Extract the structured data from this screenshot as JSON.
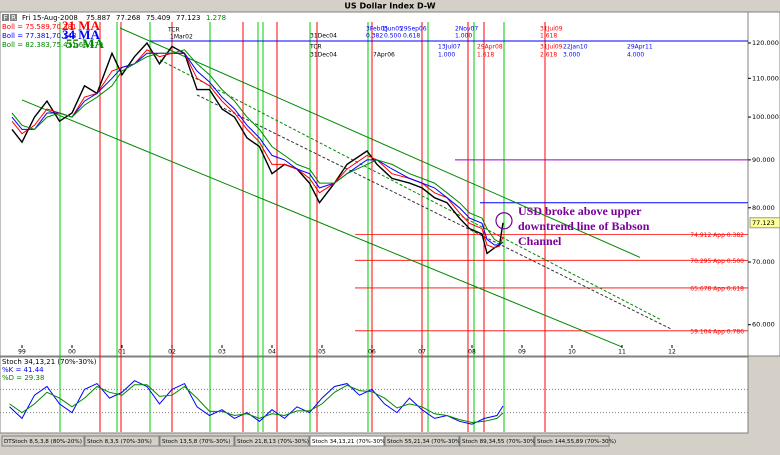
{
  "window": {
    "title": "US Dollar Index  D-W",
    "header": {
      "icons": [
        "F",
        "R"
      ],
      "date": "Fri 15-Aug-2008",
      "open": "75.887",
      "high": "77.268",
      "low": "75.409",
      "close": "77.123",
      "change": "1.278"
    },
    "tabs": [
      "DTStoch 8,5,3,8 (80%-20%)",
      "Stoch 8,3,5 (70%-30%)",
      "Stoch 13,5,8 (70%-30%)",
      "Stoch 21,8,13 (70%-30%)",
      "Stoch 34,13,21 (70%-30%)",
      "Stoch 55,21,34 (70%-30%)",
      "Stoch 89,34,55 (70%-30%)",
      "Stoch 144,55,89 (70%-30%)"
    ],
    "active_tab": 4
  },
  "chart_data": [
    {
      "type": "line",
      "log_scale": true,
      "x": [
        1998.8,
        1999.0,
        1999.25,
        1999.5,
        1999.75,
        2000.0,
        2000.25,
        2000.5,
        2000.8,
        2001.0,
        2001.25,
        2001.5,
        2001.75,
        2002.0,
        2002.25,
        2002.5,
        2002.75,
        2003.0,
        2003.25,
        2003.5,
        2003.75,
        2004.0,
        2004.25,
        2004.5,
        2004.75,
        2004.95,
        2005.25,
        2005.5,
        2005.9,
        2006.1,
        2006.4,
        2006.75,
        2007.0,
        2007.25,
        2007.5,
        2007.75,
        2007.95,
        2008.2,
        2008.3,
        2008.45,
        2008.55,
        2008.62
      ],
      "series": [
        {
          "color": "#000000",
          "values": [
            97,
            94,
            100,
            104,
            99,
            101,
            108,
            106,
            117,
            111,
            116,
            120,
            114,
            119,
            117,
            107,
            107,
            102,
            100,
            95,
            93,
            87,
            89,
            88,
            85,
            81,
            85,
            89,
            92,
            89,
            86,
            85,
            84,
            82,
            81,
            78,
            76,
            75,
            71.5,
            72.5,
            73,
            77.1
          ]
        },
        {
          "name": "21 MA",
          "boll_label": "Boll = 75.589,70.381",
          "color": "#ff0000",
          "values": [
            99,
            96,
            98,
            102,
            101,
            100,
            105,
            106,
            112,
            113,
            114,
            118,
            116,
            117,
            117,
            110,
            108,
            104,
            101,
            97,
            94,
            89,
            89,
            88,
            86,
            83,
            85,
            88,
            91,
            90,
            87,
            86,
            85,
            83,
            82,
            79,
            77,
            76,
            73,
            72.5,
            72.8,
            74.5
          ]
        },
        {
          "name": "34 MA",
          "boll_label": "Boll = 77.381,70.143",
          "color": "#0000ff",
          "values": [
            100,
            97,
            97,
            101,
            101,
            100,
            104,
            106,
            110,
            113,
            114,
            117,
            117,
            117,
            117,
            112,
            109,
            105,
            102,
            98,
            95,
            91,
            90,
            88,
            87,
            84,
            85,
            87,
            90,
            90,
            88,
            86,
            85,
            84,
            82,
            80,
            78,
            77,
            74,
            73,
            73,
            73.5
          ]
        },
        {
          "name": "55 MA",
          "boll_label": "Boll = 82.383,75.431,68.479",
          "color": "#008800",
          "values": [
            101,
            98,
            97,
            100,
            101,
            100,
            103,
            105,
            108,
            112,
            114,
            116,
            117,
            117,
            118,
            114,
            111,
            107,
            104,
            100,
            97,
            93,
            91,
            89,
            88,
            85,
            85,
            87,
            89,
            90,
            89,
            87,
            86,
            85,
            83,
            81,
            79,
            78,
            76,
            74,
            73.5,
            73.5
          ]
        }
      ],
      "xlim": [
        1998.56,
        2013.52
      ],
      "ylim": [
        56.1,
        129.5
      ],
      "xticks": [
        {
          "value": 1999,
          "label": "99"
        },
        {
          "value": 2000,
          "label": "00"
        },
        {
          "value": 2001,
          "label": "01"
        },
        {
          "value": 2002,
          "label": "02"
        },
        {
          "value": 2003,
          "label": "03"
        },
        {
          "value": 2004,
          "label": "04"
        },
        {
          "value": 2005,
          "label": "05"
        },
        {
          "value": 2006,
          "label": "06"
        },
        {
          "value": 2007,
          "label": "07"
        },
        {
          "value": 2008,
          "label": "08"
        },
        {
          "value": 2009,
          "label": "09"
        },
        {
          "value": 2010,
          "label": "10"
        },
        {
          "value": 2011,
          "label": "11"
        },
        {
          "value": 2012,
          "label": "12"
        }
      ],
      "yticks": [
        {
          "value": 120,
          "label": "120.000"
        },
        {
          "value": 110,
          "label": "110.000"
        },
        {
          "value": 100,
          "label": "100.000"
        },
        {
          "value": 90,
          "label": "90.000"
        },
        {
          "value": 80,
          "label": "80.000"
        },
        {
          "value": 70,
          "label": "70.000"
        },
        {
          "value": 60,
          "label": "60.000"
        }
      ],
      "levels": [
        {
          "value": 74.912,
          "label": "74.912 App 0.382"
        },
        {
          "value": 70.295,
          "label": "70.295 App 0.500"
        },
        {
          "value": 65.678,
          "label": "65.678 App 0.618"
        },
        {
          "value": 59.104,
          "label": "59.104 App 0.786"
        }
      ],
      "level_color": "#ff0000",
      "levels_from": 2005.66,
      "hlines": [
        {
          "value": 120.6,
          "from": 2001.56,
          "color": "#0000ff"
        },
        {
          "value": 90,
          "from": 2007.66,
          "color": "#9900cc"
        },
        {
          "value": 81,
          "from": 2008.16,
          "color": "#0000ff"
        }
      ],
      "vlines": [
        {
          "color": "#00cc00",
          "x": [
            1999.76,
            2000.9,
            2001.56,
            2002.76,
            2003.72,
            2003.82,
            2004.76,
            2005.92,
            2007.12,
            2008.04,
            2008.64
          ]
        },
        {
          "color": "#ff0000",
          "x": [
            2000.56,
            2000.98,
            2002.0,
            2003.42,
            2004.1,
            2004.9,
            2006.0,
            2007.0,
            2007.92,
            2008.24,
            2009.46
          ]
        }
      ],
      "trendlines": [
        {
          "x": [
            2000.96,
            2011.36
          ],
          "y": [
            124.5,
            70.8
          ],
          "color": "#008800",
          "dash": false
        },
        {
          "x": [
            2001.76,
            2011.76
          ],
          "y": [
            115.1,
            60.8
          ],
          "color": "#008800",
          "dash": true
        },
        {
          "x": [
            2002.5,
            2012.0
          ],
          "y": [
            105.6,
            59.3
          ],
          "color": "#333333",
          "dash": true
        },
        {
          "x": [
            1999.0,
            2011.0
          ],
          "y": [
            104.3,
            56.8
          ],
          "color": "#008800",
          "dash": false
        }
      ],
      "annotations": [
        {
          "text": "TCR",
          "color": "#000000"
        },
        {
          "text": "1Mar02",
          "color": "#000000"
        },
        {
          "text": "31Dec04",
          "color": "#000000"
        },
        {
          "text": "3Feb05",
          "color": "#0000ff"
        },
        {
          "text": "1Jun05",
          "color": "#0000ff"
        },
        {
          "text": "29Sep06",
          "color": "#0000ff"
        },
        {
          "text": "0.382",
          "color": "#0000ff"
        },
        {
          "text": "0.500",
          "color": "#0000ff"
        },
        {
          "text": "0.618",
          "color": "#0000ff"
        },
        {
          "text": "2Nov07",
          "color": "#0000ff"
        },
        {
          "text": "1.000",
          "color": "#0000ff"
        },
        {
          "text": "31Jul09",
          "color": "#ff0000"
        },
        {
          "text": "1.618",
          "color": "#ff0000"
        },
        {
          "text": "TCR",
          "color": "#000000"
        },
        {
          "text": "31Dec04",
          "color": "#000000"
        },
        {
          "text": "7Apr06",
          "color": "#000000"
        },
        {
          "text": "13Jul07",
          "color": "#0000ff"
        },
        {
          "text": "1.000",
          "color": "#0000ff"
        },
        {
          "text": "29Apr08",
          "color": "#ff0000"
        },
        {
          "text": "1.618",
          "color": "#ff0000"
        },
        {
          "text": "31Jul09",
          "color": "#ff0000"
        },
        {
          "text": "2.618",
          "color": "#ff0000"
        },
        {
          "text": "22Jan10",
          "color": "#0000ff"
        },
        {
          "text": "3.000",
          "color": "#0000ff"
        },
        {
          "text": "29Apr11",
          "color": "#0000ff"
        },
        {
          "text": "4.000",
          "color": "#0000ff"
        }
      ],
      "callout": [
        "USD broke above upper",
        "downtrend line of Babson",
        "Channel"
      ],
      "callout_color": "#7a0099"
    },
    {
      "type": "line",
      "title": "Stoch 34,13,21 (70%-30%)",
      "x": [
        1998.75,
        1999.0,
        1999.25,
        1999.5,
        1999.75,
        2000.0,
        2000.25,
        2000.5,
        2000.75,
        2001.0,
        2001.25,
        2001.5,
        2001.75,
        2002.0,
        2002.25,
        2002.5,
        2002.75,
        2003.0,
        2003.25,
        2003.5,
        2003.75,
        2004.0,
        2004.25,
        2004.5,
        2004.75,
        2005.0,
        2005.25,
        2005.5,
        2005.75,
        2006.0,
        2006.25,
        2006.5,
        2006.75,
        2007.0,
        2007.25,
        2007.5,
        2007.75,
        2008.0,
        2008.25,
        2008.5,
        2008.62
      ],
      "series": [
        {
          "name": "%K = 41.44",
          "color": "#0000ff",
          "values": [
            40,
            20,
            60,
            75,
            45,
            30,
            70,
            80,
            55,
            65,
            85,
            75,
            45,
            70,
            80,
            40,
            25,
            35,
            20,
            30,
            15,
            35,
            20,
            40,
            30,
            55,
            75,
            80,
            60,
            70,
            45,
            30,
            55,
            35,
            20,
            25,
            15,
            10,
            20,
            25,
            41.44
          ]
        },
        {
          "name": "%D = 29.38",
          "color": "#008800",
          "values": [
            45,
            30,
            45,
            65,
            55,
            40,
            55,
            75,
            65,
            60,
            78,
            78,
            58,
            60,
            75,
            55,
            32,
            32,
            25,
            28,
            20,
            28,
            25,
            33,
            33,
            45,
            65,
            77,
            68,
            66,
            55,
            38,
            45,
            40,
            28,
            25,
            18,
            13,
            15,
            20,
            29.38
          ]
        }
      ],
      "ylim": [
        0,
        100
      ],
      "levels": [
        70,
        30
      ]
    }
  ]
}
